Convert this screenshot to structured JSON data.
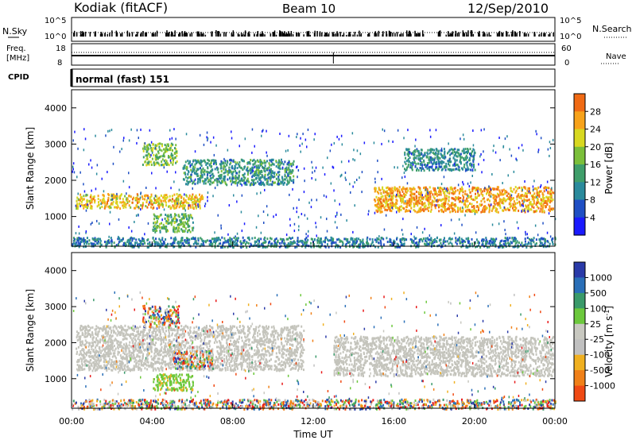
{
  "header": {
    "station": "Kodiak (fitACF)",
    "beam": "Beam 10",
    "date": "12/Sep/2010"
  },
  "top_panels": {
    "nsky_label": "N.Sky",
    "nsearch_label": "N.Search",
    "noise_ticks": [
      "10^5",
      "10^0"
    ],
    "freq_label_1": "Freq.",
    "freq_label_2": "[MHz]",
    "freq_ticks": [
      "18",
      "8"
    ],
    "nave_label": "Nave",
    "nave_ticks": [
      "60",
      "0"
    ],
    "cpid_label": "CPID",
    "cpid_value": "normal (fast) 151"
  },
  "colors": {
    "power": [
      "#1a1aff",
      "#1f4fc4",
      "#2a8a9c",
      "#3f9e6a",
      "#7bbf3a",
      "#d8d820",
      "#f7a21a",
      "#f06a14",
      "#e8281a"
    ],
    "velocity": [
      "#2a3aa8",
      "#2a6fb8",
      "#3a9a6a",
      "#6cc83c",
      "#c8c8c0",
      "#c0c0c0",
      "#f0b020",
      "#f08018",
      "#f04a14",
      "#e81a1a"
    ],
    "ground": "#c4c4bc"
  },
  "chart_data": [
    {
      "type": "heatmap",
      "title": "Power",
      "ylabel": "Slant Range [km]",
      "xlabel": "",
      "x_ticks": [
        "00:00",
        "04:00",
        "08:00",
        "12:00",
        "16:00",
        "20:00",
        "00:00"
      ],
      "y_ticks": [
        "1000",
        "2000",
        "3000",
        "4000"
      ],
      "ylim": [
        180,
        4500
      ],
      "xlim_hours": [
        0,
        24
      ],
      "colorbar_label": "Power [dB]",
      "colorbar_ticks": [
        "4",
        "8",
        "12",
        "16",
        "20",
        "24",
        "28"
      ],
      "features": [
        {
          "t": [
            0.2,
            6.5
          ],
          "r": [
            1250,
            1650
          ],
          "level": 22
        },
        {
          "t": [
            3.5,
            5.2
          ],
          "r": [
            2450,
            3050
          ],
          "level": 16
        },
        {
          "t": [
            4.0,
            6.0
          ],
          "r": [
            600,
            1100
          ],
          "level": 14
        },
        {
          "t": [
            5.5,
            11.0
          ],
          "r": [
            1900,
            2600
          ],
          "level": 10
        },
        {
          "t": [
            15.0,
            23.9
          ],
          "r": [
            1150,
            1850
          ],
          "level": 24
        },
        {
          "t": [
            16.5,
            20.0
          ],
          "r": [
            2300,
            2900
          ],
          "level": 9
        },
        {
          "t": [
            0.0,
            24.0
          ],
          "r": [
            180,
            450
          ],
          "level": 8
        }
      ]
    },
    {
      "type": "heatmap",
      "title": "Velocity",
      "ylabel": "Slant Range [km]",
      "xlabel": "Time UT",
      "x_ticks": [
        "00:00",
        "04:00",
        "08:00",
        "12:00",
        "16:00",
        "20:00",
        "00:00"
      ],
      "y_ticks": [
        "1000",
        "2000",
        "3000",
        "4000"
      ],
      "ylim": [
        180,
        4500
      ],
      "xlim_hours": [
        0,
        24
      ],
      "colorbar_label": "Velocity [m s-1]",
      "colorbar_ticks": [
        "1000",
        "500",
        "100",
        "25",
        "-25",
        "-100",
        "-500",
        "-1000"
      ],
      "features": [
        {
          "t": [
            0.2,
            11.5
          ],
          "r": [
            1250,
            2500
          ],
          "kind": "ground"
        },
        {
          "t": [
            3.5,
            5.3
          ],
          "r": [
            2450,
            3050
          ],
          "kind": "mixed"
        },
        {
          "t": [
            4.0,
            6.0
          ],
          "r": [
            700,
            1150
          ],
          "kind": "green"
        },
        {
          "t": [
            5.0,
            7.0
          ],
          "r": [
            1300,
            1800
          ],
          "kind": "mixed"
        },
        {
          "t": [
            13.0,
            23.9
          ],
          "r": [
            1100,
            2200
          ],
          "kind": "ground"
        },
        {
          "t": [
            0.0,
            24.0
          ],
          "r": [
            180,
            450
          ],
          "kind": "mixed"
        }
      ]
    }
  ]
}
